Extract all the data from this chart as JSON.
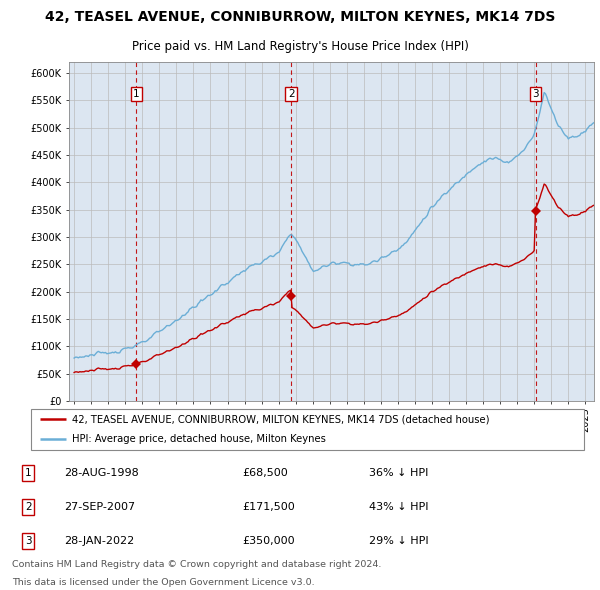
{
  "title": "42, TEASEL AVENUE, CONNIBURROW, MILTON KEYNES, MK14 7DS",
  "subtitle": "Price paid vs. HM Land Registry's House Price Index (HPI)",
  "legend_line1": "42, TEASEL AVENUE, CONNIBURROW, MILTON KEYNES, MK14 7DS (detached house)",
  "legend_line2": "HPI: Average price, detached house, Milton Keynes",
  "footer_line1": "Contains HM Land Registry data © Crown copyright and database right 2024.",
  "footer_line2": "This data is licensed under the Open Government Licence v3.0.",
  "transactions": [
    {
      "num": 1,
      "date": "28-AUG-1998",
      "price": 68500,
      "pct": "36% ↓ HPI",
      "x": 1998.65
    },
    {
      "num": 2,
      "date": "27-SEP-2007",
      "price": 171500,
      "pct": "43% ↓ HPI",
      "x": 2007.73
    },
    {
      "num": 3,
      "date": "28-JAN-2022",
      "price": 350000,
      "pct": "29% ↓ HPI",
      "x": 2022.07
    }
  ],
  "hpi_color": "#6baed6",
  "price_color": "#c00000",
  "plot_bg_color": "#dce6f1",
  "fig_bg_color": "#ffffff",
  "ylim": [
    0,
    620000
  ],
  "xlim_start": 1994.7,
  "xlim_end": 2025.5
}
